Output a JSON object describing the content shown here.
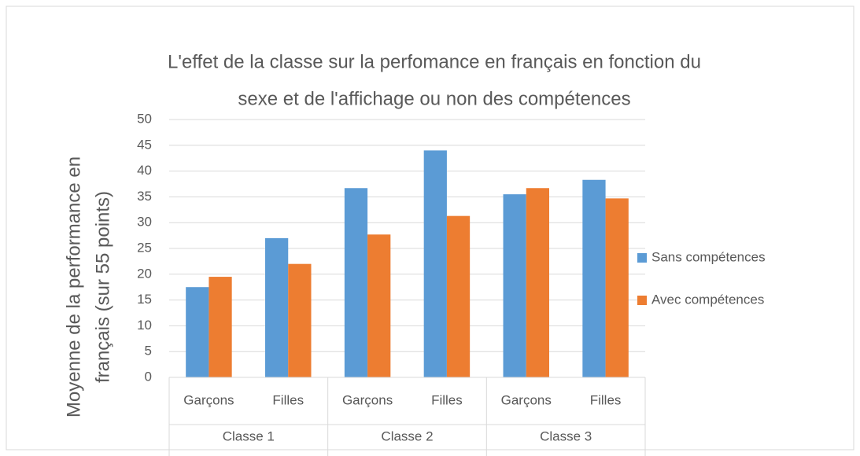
{
  "chart_data": {
    "type": "bar",
    "title": [
      "L'effet de la classe sur la perfomance en français en fonction du",
      "sexe et de l'affichage ou non des compétences"
    ],
    "y_label": [
      "Moyenne  de la performance en",
      "français (sur 55 points)"
    ],
    "groups": [
      {
        "name": "Classe 1",
        "categories": [
          "Garçons",
          "Filles"
        ]
      },
      {
        "name": "Classe 2",
        "categories": [
          "Garçons",
          "Filles"
        ]
      },
      {
        "name": "Classe 3",
        "categories": [
          "Garçons",
          "Filles"
        ]
      }
    ],
    "series": [
      {
        "name": "Sans compétences",
        "color": "#5b9bd5",
        "values": [
          17.5,
          27,
          36.7,
          44,
          35.5,
          38.3
        ]
      },
      {
        "name": "Avec compétences",
        "color": "#ed7d31",
        "values": [
          19.5,
          22,
          27.7,
          31.3,
          36.7,
          34.7
        ]
      }
    ],
    "ylim": [
      0,
      50
    ],
    "yticks": [
      0,
      5,
      10,
      15,
      20,
      25,
      30,
      35,
      40,
      45,
      50
    ],
    "grid": true,
    "legend": "right"
  }
}
